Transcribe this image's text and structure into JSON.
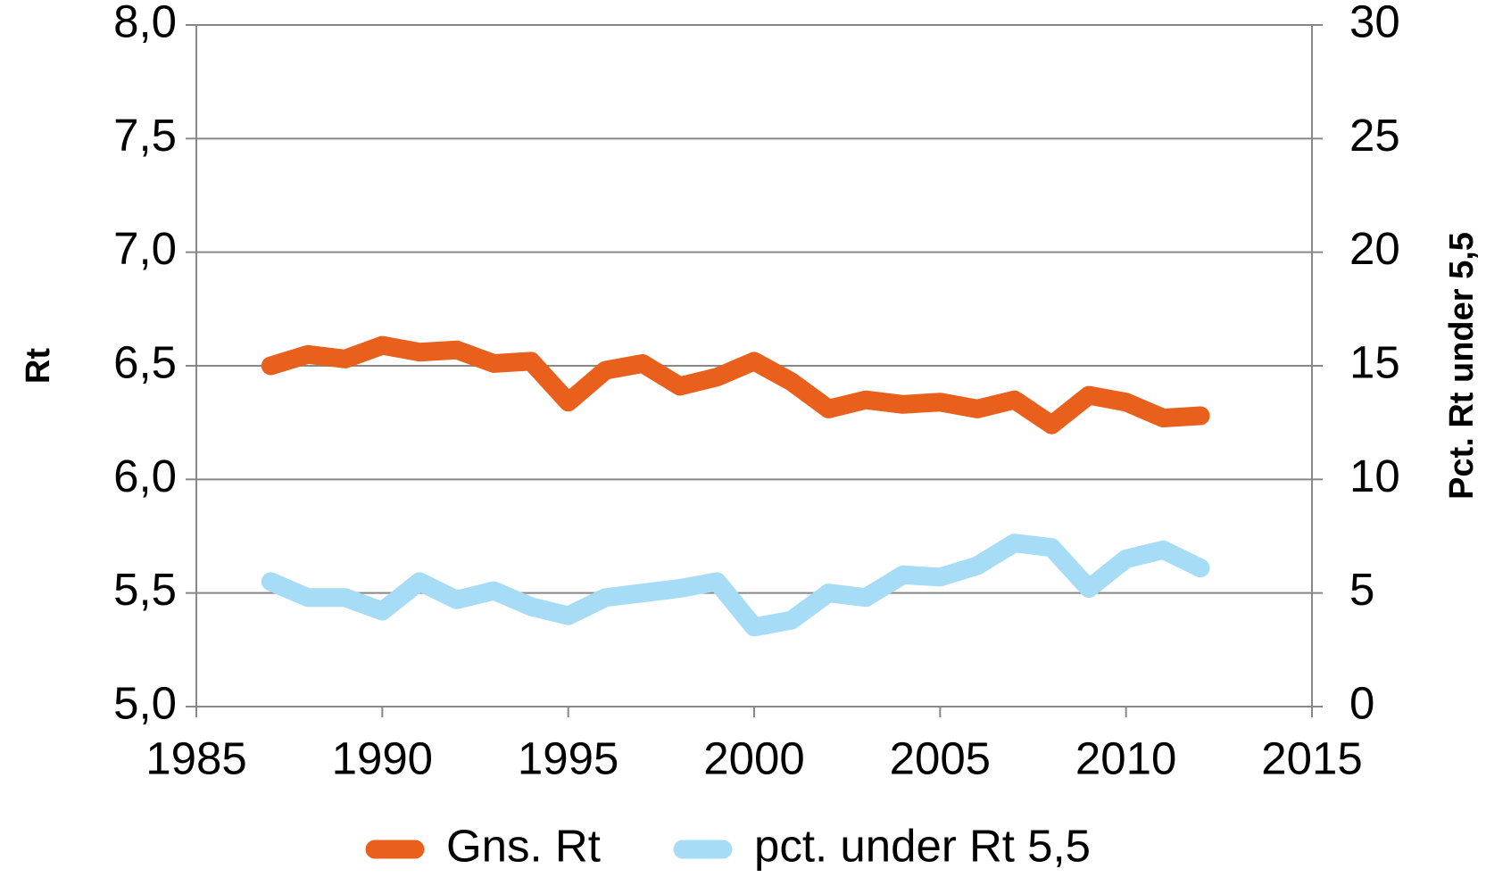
{
  "chart_data": {
    "type": "line",
    "x": [
      1987,
      1988,
      1989,
      1990,
      1991,
      1992,
      1993,
      1994,
      1995,
      1996,
      1997,
      1998,
      1999,
      2000,
      2001,
      2002,
      2003,
      2004,
      2005,
      2006,
      2007,
      2008,
      2009,
      2010,
      2011,
      2012
    ],
    "series": [
      {
        "name": "Gns. Rt",
        "color": "#e8601c",
        "values": [
          6.5,
          6.55,
          6.53,
          6.59,
          6.56,
          6.57,
          6.51,
          6.52,
          6.34,
          6.48,
          6.51,
          6.41,
          6.45,
          6.52,
          6.43,
          6.31,
          6.35,
          6.33,
          6.34,
          6.31,
          6.35,
          6.24,
          6.37,
          6.34,
          6.27,
          6.28
        ]
      },
      {
        "name": "pct. under Rt 5,5",
        "color": "#a6dcf5",
        "axis": "y2",
        "values": [
          5.5,
          4.8,
          4.8,
          4.2,
          5.5,
          4.7,
          5.1,
          4.4,
          4.0,
          4.8,
          5.0,
          5.2,
          5.5,
          3.5,
          3.8,
          5.0,
          4.8,
          5.8,
          5.7,
          6.2,
          7.2,
          7.0,
          5.2,
          6.5,
          6.9,
          6.1
        ]
      }
    ],
    "y_label": "Rt",
    "y2_label": "Pct. Rt under 5,5",
    "xlim": [
      1985,
      2015
    ],
    "xticks": [
      1985,
      1990,
      1995,
      2000,
      2005,
      2010,
      2015
    ],
    "ylim": [
      5.0,
      8.0
    ],
    "yticks": [
      {
        "value": 5.0,
        "label": "5,0"
      },
      {
        "value": 5.5,
        "label": "5,5"
      },
      {
        "value": 6.0,
        "label": "6,0"
      },
      {
        "value": 6.5,
        "label": "6,5"
      },
      {
        "value": 7.0,
        "label": "7,0"
      },
      {
        "value": 7.5,
        "label": "7,5"
      },
      {
        "value": 8.0,
        "label": "8,0"
      }
    ],
    "y2lim": [
      0,
      30
    ],
    "y2ticks": [
      0,
      5,
      10,
      15,
      20,
      25,
      30
    ],
    "grid": true,
    "legend": "bottom"
  }
}
